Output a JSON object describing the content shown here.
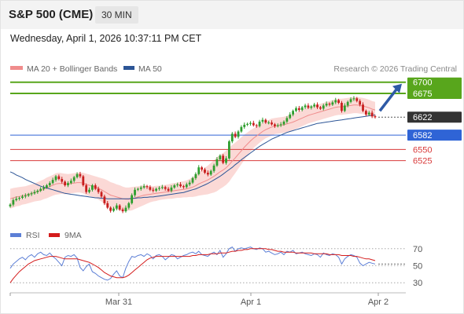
{
  "header": {
    "symbol": "S&P 500 (CME)",
    "timeframe": "30 MIN"
  },
  "datetime": "Wednesday, April 1, 2026 10:37:11 PM CET",
  "legend": {
    "items": [
      {
        "label": "MA 20 + Bollinger Bands",
        "color": "#f08c8c"
      },
      {
        "label": "MA 50",
        "color": "#2c5596"
      }
    ],
    "credit": "Research © 2026 Trading Central"
  },
  "rsi_legend": {
    "items": [
      {
        "label": "RSI",
        "color": "#5c7fd6"
      },
      {
        "label": "9MA",
        "color": "#d41c1c"
      }
    ]
  },
  "colors": {
    "resistance": "#58a61c",
    "pivot": "#2f64d6",
    "support": "#d93a3a",
    "last_price": "#333333",
    "up_candle": "#2e9e2e",
    "down_candle": "#c81e1e",
    "band_fill": "#fbd9d6"
  },
  "chart_data": [
    {
      "type": "candlestick",
      "title": "S&P 500 (CME)",
      "timeframe": "30 MIN",
      "x_ticks": [
        "Mar 31",
        "Apr 1",
        "Apr 2"
      ],
      "ylim": [
        6400,
        6710
      ],
      "levels": [
        {
          "label": "6700",
          "value": 6700,
          "kind": "resistance"
        },
        {
          "label": "6675",
          "value": 6675,
          "kind": "resistance"
        },
        {
          "label": "6622",
          "value": 6622,
          "kind": "last"
        },
        {
          "label": "6582",
          "value": 6582,
          "kind": "pivot"
        },
        {
          "label": "6550",
          "value": 6550,
          "kind": "support"
        },
        {
          "label": "6525",
          "value": 6525,
          "kind": "support"
        }
      ],
      "close": [
        6427,
        6437,
        6440,
        6442,
        6445,
        6447,
        6450,
        6452,
        6455,
        6458,
        6462,
        6465,
        6470,
        6475,
        6482,
        6490,
        6484,
        6478,
        6470,
        6475,
        6480,
        6488,
        6495,
        6490,
        6470,
        6455,
        6460,
        6470,
        6462,
        6455,
        6445,
        6430,
        6420,
        6413,
        6418,
        6425,
        6416,
        6412,
        6420,
        6430,
        6448,
        6460,
        6462,
        6465,
        6468,
        6466,
        6460,
        6458,
        6462,
        6464,
        6466,
        6462,
        6458,
        6465,
        6470,
        6472,
        6468,
        6466,
        6472,
        6476,
        6486,
        6495,
        6510,
        6505,
        6498,
        6494,
        6502,
        6514,
        6528,
        6536,
        6520,
        6530,
        6568,
        6585,
        6578,
        6590,
        6600,
        6605,
        6607,
        6609,
        6604,
        6602,
        6612,
        6616,
        6610,
        6610,
        6606,
        6602,
        6604,
        6606,
        6612,
        6620,
        6628,
        6636,
        6642,
        6638,
        6644,
        6648,
        6643,
        6646,
        6650,
        6644,
        6641,
        6648,
        6652,
        6650,
        6655,
        6660,
        6654,
        6636,
        6648,
        6656,
        6662,
        6664,
        6658,
        6650,
        6636,
        6628,
        6632,
        6624,
        6622
      ],
      "ma20": [
        6440,
        6442,
        6444,
        6445,
        6447,
        6448,
        6450,
        6452,
        6454,
        6456,
        6458,
        6461,
        6464,
        6467,
        6470,
        6473,
        6474,
        6474,
        6473,
        6473,
        6474,
        6475,
        6476,
        6476,
        6475,
        6472,
        6470,
        6468,
        6466,
        6463,
        6460,
        6456,
        6452,
        6448,
        6446,
        6444,
        6442,
        6440,
        6439,
        6439,
        6440,
        6442,
        6444,
        6446,
        6448,
        6449,
        6450,
        6451,
        6452,
        6453,
        6454,
        6455,
        6456,
        6457,
        6458,
        6459,
        6460,
        6461,
        6462,
        6464,
        6466,
        6469,
        6473,
        6476,
        6479,
        6482,
        6486,
        6490,
        6495,
        6500,
        6504,
        6509,
        6516,
        6524,
        6531,
        6539,
        6547,
        6555,
        6562,
        6569,
        6575,
        6580,
        6585,
        6590,
        6594,
        6597,
        6600,
        6602,
        6603,
        6604,
        6605,
        6607,
        6609,
        6611,
        6614,
        6617,
        6620,
        6623,
        6626,
        6628,
        6630,
        6632,
        6634,
        6636,
        6638,
        6640,
        6642,
        6644,
        6645,
        6645,
        6646,
        6647,
        6648,
        6649,
        6649,
        6648,
        6647,
        6645,
        6643,
        6640,
        6638
      ],
      "bb_width": [
        22,
        22,
        21,
        21,
        20,
        20,
        20,
        20,
        20,
        21,
        22,
        22,
        23,
        23,
        23,
        24,
        24,
        23,
        23,
        22,
        22,
        22,
        22,
        22,
        23,
        24,
        24,
        24,
        24,
        25,
        26,
        28,
        29,
        29,
        29,
        28,
        28,
        27,
        26,
        26,
        26,
        25,
        24,
        23,
        22,
        20,
        18,
        17,
        17,
        16,
        16,
        16,
        16,
        17,
        17,
        17,
        18,
        18,
        19,
        20,
        22,
        24,
        26,
        28,
        30,
        32,
        34,
        36,
        38,
        38,
        38,
        38,
        38,
        36,
        34,
        32,
        30,
        28,
        26,
        24,
        22,
        21,
        20,
        20,
        19,
        19,
        19,
        18,
        18,
        18,
        18,
        18,
        18,
        18,
        18,
        18,
        18,
        18,
        18,
        18,
        18,
        18,
        18,
        18,
        18,
        18,
        18,
        18,
        18,
        18,
        18,
        18,
        18,
        18,
        18,
        18,
        18,
        18,
        18,
        18,
        18
      ],
      "ma50": [
        6500,
        6497,
        6493,
        6490,
        6487,
        6483,
        6480,
        6477,
        6474,
        6471,
        6468,
        6466,
        6464,
        6462,
        6460,
        6458,
        6456,
        6454,
        6452,
        6451,
        6450,
        6449,
        6448,
        6447,
        6446,
        6445,
        6444,
        6443,
        6442,
        6442,
        6441,
        6441,
        6440,
        6440,
        6440,
        6440,
        6440,
        6440,
        6440,
        6440,
        6441,
        6441,
        6442,
        6442,
        6443,
        6443,
        6444,
        6444,
        6445,
        6446,
        6447,
        6448,
        6449,
        6450,
        6451,
        6452,
        6453,
        6454,
        6456,
        6458,
        6460,
        6462,
        6465,
        6468,
        6471,
        6474,
        6478,
        6482,
        6486,
        6490,
        6495,
        6500,
        6505,
        6510,
        6516,
        6521,
        6527,
        6532,
        6537,
        6542,
        6547,
        6552,
        6557,
        6561,
        6565,
        6569,
        6573,
        6576,
        6579,
        6582,
        6585,
        6588,
        6590,
        6592,
        6594,
        6596,
        6598,
        6600,
        6602,
        6604,
        6606,
        6608,
        6609,
        6610,
        6611,
        6612,
        6613,
        6614,
        6615,
        6616,
        6617,
        6618,
        6619,
        6620,
        6621,
        6622,
        6623,
        6624,
        6625,
        6626,
        6627
      ]
    },
    {
      "type": "line",
      "title": "RSI",
      "ylim": [
        20,
        80
      ],
      "y_ticks": [
        70,
        50,
        30
      ],
      "series": [
        {
          "name": "RSI",
          "values": [
            47,
            52,
            55,
            58,
            60,
            57,
            61,
            63,
            60,
            64,
            66,
            63,
            62,
            65,
            61,
            58,
            54,
            50,
            60,
            62,
            61,
            63,
            59,
            48,
            44,
            49,
            52,
            43,
            41,
            38,
            36,
            34,
            33,
            35,
            40,
            44,
            38,
            36,
            47,
            55,
            61,
            60,
            62,
            63,
            61,
            64,
            62,
            58,
            62,
            63,
            61,
            57,
            60,
            63,
            62,
            58,
            60,
            62,
            63,
            65,
            66,
            64,
            67,
            63,
            62,
            61,
            64,
            66,
            63,
            68,
            60,
            64,
            70,
            72,
            67,
            70,
            71,
            70,
            71,
            72,
            70,
            69,
            71,
            70,
            66,
            67,
            65,
            63,
            64,
            66,
            63,
            67,
            66,
            68,
            64,
            65,
            66,
            64,
            63,
            62,
            64,
            63,
            60,
            65,
            63,
            62,
            64,
            63,
            60,
            52,
            58,
            61,
            63,
            62,
            60,
            53,
            50,
            52,
            54,
            53,
            52
          ]
        },
        {
          "name": "9MA",
          "values": [
            30,
            35,
            39,
            43,
            46,
            49,
            52,
            54,
            56,
            57,
            58,
            59,
            60,
            61,
            61,
            61,
            60,
            59,
            58,
            58,
            58,
            58,
            58,
            57,
            56,
            55,
            54,
            52,
            50,
            48,
            45,
            42,
            40,
            38,
            37,
            36,
            36,
            36,
            37,
            39,
            42,
            45,
            48,
            51,
            54,
            57,
            59,
            60,
            61,
            61,
            61,
            61,
            61,
            61,
            61,
            61,
            61,
            61,
            61,
            61,
            62,
            62,
            63,
            63,
            63,
            63,
            64,
            64,
            64,
            65,
            65,
            65,
            66,
            67,
            67,
            68,
            68,
            69,
            69,
            70,
            70,
            70,
            70,
            70,
            70,
            69,
            69,
            68,
            67,
            67,
            66,
            66,
            66,
            66,
            65,
            65,
            65,
            65,
            65,
            65,
            64,
            64,
            64,
            64,
            64,
            63,
            63,
            63,
            63,
            62,
            62,
            62,
            62,
            61,
            61,
            60,
            59,
            58,
            58,
            57,
            56
          ]
        }
      ]
    }
  ]
}
